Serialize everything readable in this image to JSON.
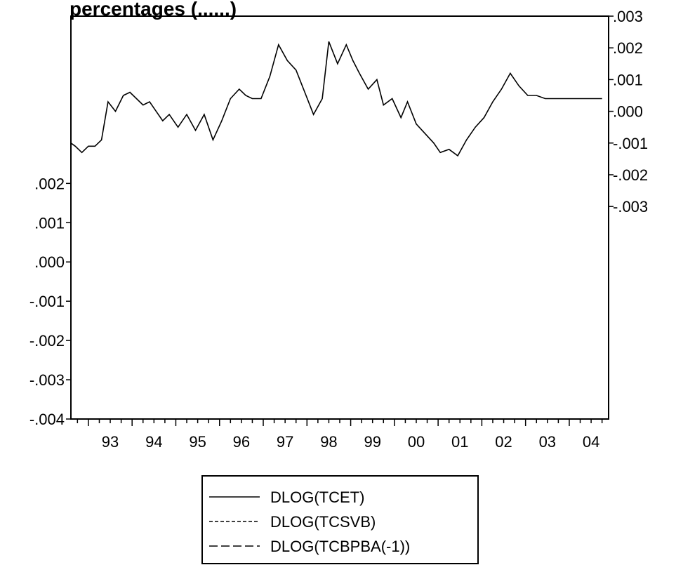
{
  "chart_data": {
    "type": "line",
    "title": "..percentages (...)",
    "title_visible_fragment": "percentages (......)",
    "x_tick_labels": [
      "93",
      "94",
      "95",
      "96",
      "97",
      "98",
      "99",
      "00",
      "01",
      "02",
      "03",
      "04"
    ],
    "x_range": [
      1992.6,
      2004.9
    ],
    "left_axis": {
      "tick_labels": [
        ".002",
        ".001",
        ".000",
        "-.001",
        "-.002",
        "-.003",
        "-.004"
      ],
      "ticks": [
        0.002,
        0.001,
        0.0,
        -0.001,
        -0.002,
        -0.003,
        -0.004
      ],
      "ylim": [
        -0.004,
        0.00626
      ]
    },
    "right_axis": {
      "tick_labels": [
        ".003",
        ".002",
        ".001",
        ".000",
        "-.001",
        "-.002",
        "-.003"
      ],
      "ticks": [
        0.003,
        0.002,
        0.001,
        0.0,
        -0.001,
        -0.002,
        -0.003
      ],
      "ylim": [
        -0.0097,
        0.003
      ]
    },
    "grid": false,
    "legend_position": "bottom-center",
    "series": [
      {
        "name": "DLOG(TCET)",
        "axis": "right",
        "style": "solid",
        "color": "#000000",
        "x": [
          1992.6,
          1992.7,
          1992.85,
          1993.0,
          1993.15,
          1993.3,
          1993.45,
          1993.62,
          1993.8,
          1993.95,
          1994.1,
          1994.25,
          1994.4,
          1994.55,
          1994.7,
          1994.85,
          1995.05,
          1995.25,
          1995.45,
          1995.65,
          1995.85,
          1996.05,
          1996.25,
          1996.45,
          1996.6,
          1996.75,
          1996.95,
          1997.15,
          1997.35,
          1997.55,
          1997.75,
          1997.95,
          1998.15,
          1998.35,
          1998.5,
          1998.7,
          1998.9,
          1999.05,
          1999.2,
          1999.4,
          1999.6,
          1999.75,
          1999.95,
          2000.15,
          2000.3,
          2000.5,
          2000.7,
          2000.9,
          2001.05,
          2001.25,
          2001.45,
          2001.65,
          2001.85,
          2002.05,
          2002.25,
          2002.45,
          2002.65,
          2002.85,
          2003.05,
          2003.25,
          2003.45,
          2003.65,
          2003.85,
          2004.05,
          2004.25,
          2004.45,
          2004.65,
          2004.75
        ],
        "values": [
          -0.001,
          -0.0011,
          -0.0013,
          -0.0011,
          -0.0011,
          -0.0009,
          0.0003,
          0.0,
          0.0005,
          0.0006,
          0.0004,
          0.0002,
          0.0003,
          0.0,
          -0.0003,
          -0.0001,
          -0.0005,
          -0.0001,
          -0.0006,
          -0.0001,
          -0.0009,
          -0.0003,
          0.0004,
          0.0007,
          0.0005,
          0.0004,
          0.0004,
          0.0011,
          0.0021,
          0.0016,
          0.0013,
          0.0006,
          -0.0001,
          0.0004,
          0.0022,
          0.0015,
          0.0021,
          0.0016,
          0.0012,
          0.0007,
          0.001,
          0.0002,
          0.0004,
          -0.0002,
          0.0003,
          -0.0004,
          -0.0007,
          -0.001,
          -0.0013,
          -0.0012,
          -0.0014,
          -0.0009,
          -0.0005,
          -0.0002,
          0.0003,
          0.0007,
          0.0012,
          0.0008,
          0.0005,
          0.0005,
          0.0004,
          0.0004,
          0.0004,
          0.0004,
          0.0004,
          0.0004,
          0.0004,
          0.0004
        ],
        "label": "DLOG(TCET)"
      },
      {
        "name": "DLOG(TCSVB)",
        "axis": "right",
        "style": "dashed-short",
        "color": "#000000",
        "label": "DLOG(TCSVB)"
      },
      {
        "name": "DLOG(TCBPBA(-1))",
        "axis": "left",
        "style": "dashed-long",
        "color": "#000000",
        "label": "DLOG(TCBPBA(-1))"
      }
    ]
  }
}
